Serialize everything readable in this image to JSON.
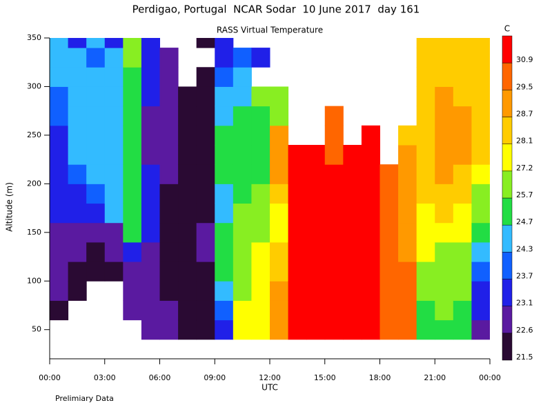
{
  "chart_data": {
    "type": "heatmap",
    "title": "Perdigao, Portugal  NCAR Sodar  10 June 2017  day 161",
    "subtitle": "RASS Virtual Temperature",
    "y_label": "Altitude (m)",
    "x_label": "UTC",
    "note": "Prelimiary Data",
    "colorbar_unit": "C",
    "x": [
      0,
      1,
      2,
      3,
      4,
      5,
      6,
      7,
      8,
      9,
      10,
      11,
      12,
      13,
      14,
      15,
      16,
      17,
      18,
      19,
      20,
      21,
      22,
      23
    ],
    "y": [
      40,
      60,
      80,
      100,
      120,
      140,
      160,
      180,
      200,
      220,
      240,
      260,
      280,
      300,
      320,
      340
    ],
    "z": [
      [
        null,
        22,
        22.8,
        22.8,
        22.8,
        22.8,
        23.4,
        23.4,
        23.4,
        23.4,
        23.4,
        24.0,
        24.0,
        24.5,
        24.5,
        24.5
      ],
      [
        null,
        null,
        22,
        22,
        22.8,
        22.8,
        23.4,
        23.4,
        24.0,
        24.5,
        24.5,
        24.5,
        24.5,
        24.5,
        24.5,
        23.4
      ],
      [
        null,
        null,
        null,
        22,
        22,
        22.8,
        23.4,
        24.0,
        24.5,
        24.5,
        24.5,
        24.5,
        24.5,
        24.5,
        24.0,
        24.5
      ],
      [
        null,
        null,
        null,
        22,
        22.8,
        22.8,
        24.5,
        24.5,
        24.5,
        24.5,
        24.5,
        24.5,
        24.5,
        24.5,
        24.5,
        23.4
      ],
      [
        null,
        22.8,
        22.8,
        22.8,
        23.4,
        25.2,
        25.2,
        25.2,
        25.2,
        25.2,
        25.2,
        25.2,
        25.2,
        25.2,
        26.5,
        26.5
      ],
      [
        22.8,
        22.8,
        22.8,
        22.8,
        22.8,
        23.4,
        23.4,
        23.4,
        23.4,
        22.8,
        22.8,
        22.8,
        23.4,
        23.4,
        23.4,
        23.4
      ],
      [
        22.8,
        22.8,
        22,
        22,
        22,
        22,
        22,
        22,
        22.8,
        22.8,
        22.8,
        22.8,
        22.8,
        22.8,
        22.8,
        null
      ],
      [
        22,
        22,
        22,
        22,
        22,
        22,
        22,
        22,
        22,
        22,
        22,
        22,
        22,
        null,
        null,
        null
      ],
      [
        22,
        22,
        22,
        22,
        22.8,
        22.8,
        22,
        22,
        22,
        22,
        22,
        22,
        22,
        22,
        null,
        22
      ],
      [
        23.4,
        24.0,
        24.5,
        25.2,
        25.2,
        25.2,
        24.5,
        24.5,
        25.2,
        25.2,
        25.2,
        24.5,
        24.5,
        24.0,
        23.4,
        23.4
      ],
      [
        27.6,
        27.6,
        26.5,
        26.5,
        26.5,
        26.5,
        26.5,
        25.2,
        25.2,
        25.2,
        25.2,
        25.2,
        24.5,
        24.5,
        24.0,
        null
      ],
      [
        27.6,
        27.6,
        27.6,
        27.6,
        27.6,
        26.5,
        26.5,
        26.5,
        25.2,
        25.2,
        25.2,
        25.2,
        26.5,
        null,
        23.4,
        null
      ],
      [
        29.1,
        29.1,
        29.1,
        28.4,
        28.4,
        27.6,
        27.6,
        28.4,
        29.1,
        29.1,
        29.1,
        26.5,
        26.5,
        null,
        null,
        null
      ],
      [
        31.5,
        31.5,
        31.5,
        31.5,
        31.5,
        31.5,
        31.5,
        31.5,
        31.5,
        31.5,
        null,
        null,
        null,
        null,
        null,
        null
      ],
      [
        31.5,
        31.5,
        31.5,
        31.5,
        31.5,
        31.5,
        31.5,
        31.5,
        31.5,
        31.5,
        null,
        null,
        null,
        null,
        null,
        null
      ],
      [
        31.5,
        31.5,
        31.5,
        31.5,
        31.5,
        31.5,
        31.5,
        31.5,
        31.5,
        30.2,
        30.2,
        30.2,
        null,
        null,
        null,
        null
      ],
      [
        31.5,
        31.5,
        31.5,
        31.5,
        31.5,
        31.5,
        31.5,
        31.5,
        31.5,
        31.5,
        null,
        null,
        null,
        null,
        null,
        null
      ],
      [
        31.5,
        31.5,
        31.5,
        31.5,
        31.5,
        31.5,
        31.5,
        31.5,
        31.5,
        31.5,
        31.5,
        null,
        null,
        null,
        null,
        null
      ],
      [
        30.2,
        30.2,
        30.2,
        30.2,
        30.2,
        30.2,
        30.2,
        30.2,
        30.2,
        null,
        null,
        null,
        null,
        null,
        null,
        null
      ],
      [
        30.2,
        30.2,
        30.2,
        30.2,
        29.1,
        29.1,
        29.1,
        29.1,
        29.1,
        29.1,
        28.4,
        null,
        null,
        null,
        null,
        null
      ],
      [
        25.2,
        25.2,
        26.5,
        26.5,
        27.6,
        27.6,
        27.6,
        28.4,
        28.4,
        28.4,
        28.4,
        28.4,
        28.4,
        28.4,
        28.4,
        28.4
      ],
      [
        25.2,
        26.5,
        26.5,
        26.5,
        26.5,
        27.6,
        28.4,
        28.4,
        29.1,
        29.1,
        29.1,
        29.1,
        29.1,
        28.4,
        28.4,
        28.4
      ],
      [
        25.2,
        25.2,
        26.5,
        26.5,
        26.5,
        27.6,
        27.6,
        28.4,
        28.4,
        29.1,
        29.1,
        29.1,
        28.4,
        28.4,
        28.4,
        28.4
      ],
      [
        22.8,
        23.4,
        23.4,
        24.0,
        24.5,
        25.2,
        26.5,
        26.5,
        27.6,
        28.4,
        28.4,
        28.4,
        28.4,
        28.4,
        28.4,
        28.4
      ]
    ],
    "levels": [
      21.5,
      22.6,
      23.1,
      23.7,
      24.3,
      24.7,
      25.7,
      27.2,
      28.1,
      28.7,
      29.5,
      30.9
    ],
    "colors": [
      "#2a0a33",
      "#5a1aa0",
      "#2020e8",
      "#1060ff",
      "#33bbff",
      "#22dd44",
      "#88ee22",
      "#ffff00",
      "#ffcc00",
      "#ff9900",
      "#ff6600",
      "#ff0000"
    ],
    "xlim": [
      0,
      24
    ],
    "xticks": [
      {
        "value": 0,
        "label": "00:00"
      },
      {
        "value": 3,
        "label": "03:00"
      },
      {
        "value": 6,
        "label": "06:00"
      },
      {
        "value": 9,
        "label": "09:00"
      },
      {
        "value": 12,
        "label": "12:00"
      },
      {
        "value": 15,
        "label": "15:00"
      },
      {
        "value": 18,
        "label": "18:00"
      },
      {
        "value": 21,
        "label": "21:00"
      },
      {
        "value": 24,
        "label": "00:00"
      }
    ],
    "ylim": [
      20,
      350
    ],
    "yticks": [
      50,
      100,
      150,
      200,
      250,
      300,
      350
    ]
  }
}
